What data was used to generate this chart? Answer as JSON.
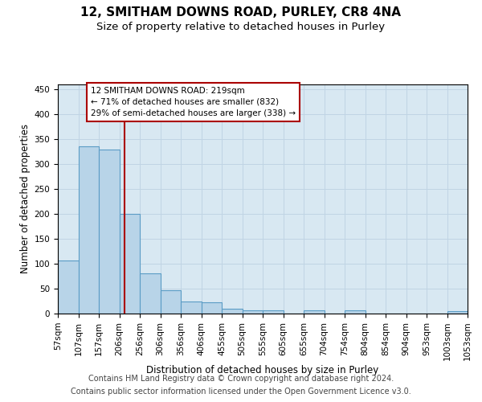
{
  "title": "12, SMITHAM DOWNS ROAD, PURLEY, CR8 4NA",
  "subtitle": "Size of property relative to detached houses in Purley",
  "xlabel": "Distribution of detached houses by size in Purley",
  "ylabel": "Number of detached properties",
  "footer_line1": "Contains HM Land Registry data © Crown copyright and database right 2024.",
  "footer_line2": "Contains public sector information licensed under the Open Government Licence v3.0.",
  "bin_labels": [
    "57sqm",
    "107sqm",
    "157sqm",
    "206sqm",
    "256sqm",
    "306sqm",
    "356sqm",
    "406sqm",
    "455sqm",
    "505sqm",
    "555sqm",
    "605sqm",
    "655sqm",
    "704sqm",
    "754sqm",
    "804sqm",
    "854sqm",
    "904sqm",
    "953sqm",
    "1003sqm",
    "1053sqm"
  ],
  "bar_heights": [
    107,
    335,
    330,
    200,
    80,
    47,
    25,
    22,
    10,
    7,
    7,
    0,
    7,
    0,
    7,
    0,
    0,
    0,
    0,
    5
  ],
  "bar_color": "#b8d4e8",
  "bar_edge_color": "#5a9cc5",
  "bar_edge_width": 0.8,
  "grid_color": "#c0d4e4",
  "bg_color": "#d8e8f2",
  "property_line_color": "#aa0000",
  "ylim": [
    0,
    460
  ],
  "yticks": [
    0,
    50,
    100,
    150,
    200,
    250,
    300,
    350,
    400,
    450
  ],
  "annotation_line1": "12 SMITHAM DOWNS ROAD: 219sqm",
  "annotation_line2": "← 71% of detached houses are smaller (832)",
  "annotation_line3": "29% of semi-detached houses are larger (338) →",
  "title_fontsize": 11,
  "subtitle_fontsize": 9.5,
  "ylabel_fontsize": 8.5,
  "xlabel_fontsize": 8.5,
  "tick_fontsize": 7.5,
  "annotation_fontsize": 7.5,
  "footer_fontsize": 7.0
}
